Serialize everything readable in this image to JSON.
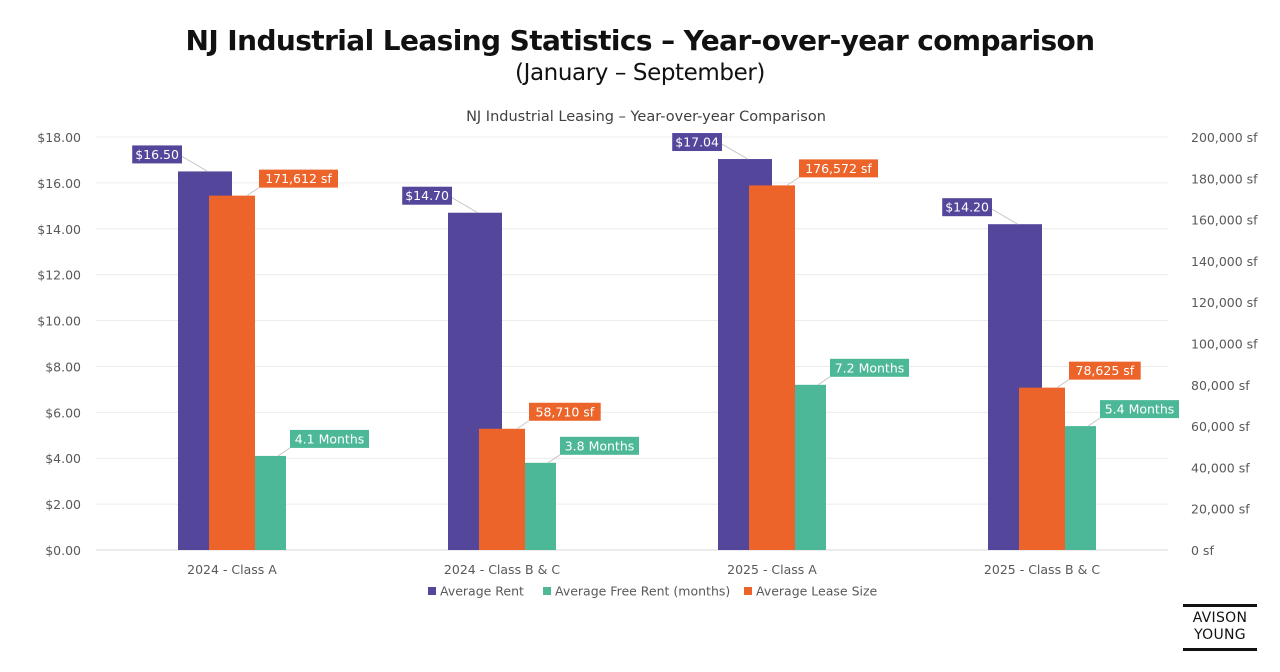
{
  "header": {
    "title": "NJ Industrial Leasing Statistics – Year-over-year comparison",
    "subtitle": "(January – September)"
  },
  "logo": {
    "line1": "AVISON",
    "line2": "YOUNG"
  },
  "chart_data": {
    "type": "bar",
    "title": "NJ Industrial Leasing – Year-over-year Comparison",
    "xlabel": "",
    "ylabel": "",
    "categories": [
      "2024 - Class A",
      "2024 - Class B & C",
      "2025 - Class A",
      "2025 - Class B & C"
    ],
    "series": [
      {
        "name": "Average Rent",
        "axis": "left",
        "color": "#54479b",
        "values": [
          16.5,
          14.7,
          17.04,
          14.2
        ],
        "labels": [
          "$16.50",
          "$14.70",
          "$17.04",
          "$14.20"
        ]
      },
      {
        "name": "Average Lease Size",
        "axis": "right",
        "color": "#ec6429",
        "values": [
          171612,
          58710,
          176572,
          78625
        ],
        "labels": [
          "171,612 sf",
          "58,710 sf",
          "176,572 sf",
          "78,625 sf"
        ]
      },
      {
        "name": "Average Free Rent (months)",
        "axis": "left",
        "color": "#4db898",
        "values": [
          4.1,
          3.8,
          7.2,
          5.4
        ],
        "labels": [
          "4.1 Months",
          "3.8 Months",
          "7.2 Months",
          "5.4 Months"
        ]
      }
    ],
    "left_axis": {
      "ylim": [
        0,
        18
      ],
      "ticks": [
        "$0.00",
        "$2.00",
        "$4.00",
        "$6.00",
        "$8.00",
        "$10.00",
        "$12.00",
        "$14.00",
        "$16.00",
        "$18.00"
      ]
    },
    "right_axis": {
      "ylim": [
        0,
        200000
      ],
      "ticks": [
        "0 sf",
        "20,000 sf",
        "40,000 sf",
        "60,000 sf",
        "80,000 sf",
        "100,000 sf",
        "120,000 sf",
        "140,000 sf",
        "160,000 sf",
        "180,000 sf",
        "200,000 sf"
      ]
    },
    "legend": {
      "position": "bottom",
      "items": [
        {
          "name": "Average Rent",
          "color": "#54479b"
        },
        {
          "name": "Average Free Rent (months)",
          "color": "#4db898"
        },
        {
          "name": "Average Lease Size",
          "color": "#ec6429"
        }
      ]
    },
    "grid": true
  }
}
